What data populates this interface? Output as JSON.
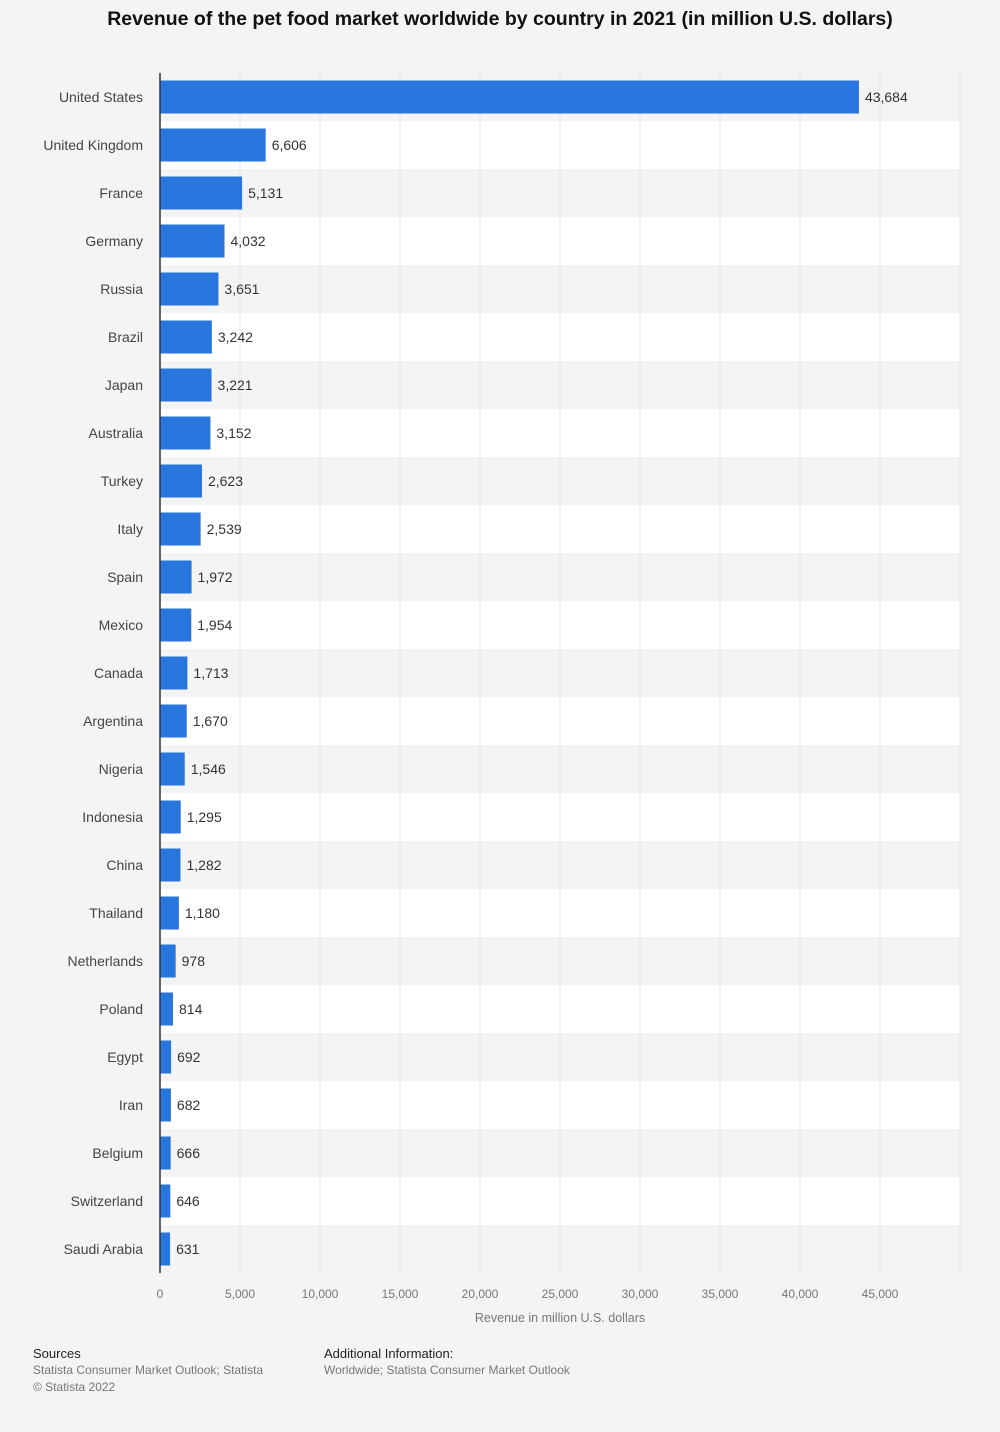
{
  "chart_data": {
    "type": "bar",
    "orientation": "horizontal",
    "title": "Revenue of the pet food market worldwide by country in 2021 (in million U.S. dollars)",
    "xlabel": "Revenue in million U.S. dollars",
    "ylabel": "",
    "categories": [
      "United States",
      "United Kingdom",
      "France",
      "Germany",
      "Russia",
      "Brazil",
      "Japan",
      "Australia",
      "Turkey",
      "Italy",
      "Spain",
      "Mexico",
      "Canada",
      "Argentina",
      "Nigeria",
      "Indonesia",
      "China",
      "Thailand",
      "Netherlands",
      "Poland",
      "Egypt",
      "Iran",
      "Belgium",
      "Switzerland",
      "Saudi Arabia"
    ],
    "values": [
      43684,
      6606,
      5131,
      4032,
      3651,
      3242,
      3221,
      3152,
      2623,
      2539,
      1972,
      1954,
      1713,
      1670,
      1546,
      1295,
      1282,
      1180,
      978,
      814,
      692,
      682,
      666,
      646,
      631
    ],
    "value_labels": [
      "43,684",
      "6,606",
      "5,131",
      "4,032",
      "3,651",
      "3,242",
      "3,221",
      "3,152",
      "2,623",
      "2,539",
      "1,972",
      "1,954",
      "1,713",
      "1,670",
      "1,546",
      "1,295",
      "1,282",
      "1,180",
      "978",
      "814",
      "692",
      "682",
      "666",
      "646",
      "631"
    ],
    "xlim": [
      0,
      50000
    ],
    "ticks": [
      0,
      5000,
      10000,
      15000,
      20000,
      25000,
      30000,
      35000,
      40000,
      45000
    ],
    "tick_labels": [
      "0",
      "5,000",
      "10,000",
      "15,000",
      "20,000",
      "25,000",
      "30,000",
      "35,000",
      "40,000",
      "45,000"
    ],
    "grid": true,
    "bar_color": "#2876dd"
  },
  "footer": {
    "sources_heading": "Sources",
    "sources_text": "Statista Consumer Market Outlook; Statista",
    "copyright": "© Statista 2022",
    "additional_heading": "Additional Information:",
    "additional_text": "Worldwide; Statista Consumer Market Outlook"
  }
}
